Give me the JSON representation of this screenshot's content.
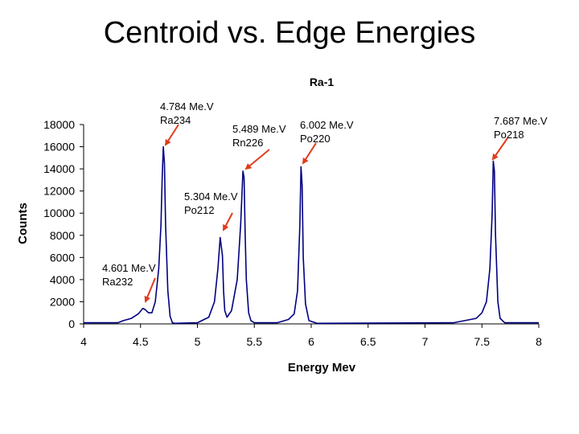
{
  "page": {
    "title": "Centroid vs. Edge Energies"
  },
  "chart_data": {
    "type": "line",
    "title": "Ra-1",
    "xlabel": "Energy Mev",
    "ylabel": "Counts",
    "xlim": [
      4,
      8
    ],
    "ylim": [
      0,
      18000
    ],
    "xticks": [
      "4",
      "4.5",
      "5",
      "5.5",
      "6",
      "6.5",
      "7",
      "7.5",
      "8"
    ],
    "yticks": [
      "0",
      "2000",
      "4000",
      "6000",
      "8000",
      "10000",
      "12000",
      "14000",
      "16000",
      "18000"
    ],
    "grid": false,
    "legend": "none",
    "line_color": "#000080",
    "annotation_color": "#e03c1c",
    "series": [
      {
        "x": [
          4.0,
          4.3,
          4.35,
          4.42,
          4.48,
          4.52,
          4.54,
          4.57,
          4.6,
          4.63,
          4.66,
          4.68,
          4.69,
          4.7,
          4.71,
          4.72,
          4.74,
          4.76,
          4.78,
          4.8,
          5.0,
          5.1,
          5.15,
          5.18,
          5.2,
          5.22,
          5.23,
          5.24,
          5.26,
          5.3,
          5.35,
          5.38,
          5.4,
          5.41,
          5.42,
          5.43,
          5.45,
          5.47,
          5.5,
          5.7,
          5.8,
          5.85,
          5.88,
          5.9,
          5.91,
          5.92,
          5.93,
          5.95,
          5.98,
          6.05,
          7.25,
          7.45,
          7.5,
          7.54,
          7.57,
          7.59,
          7.6,
          7.61,
          7.62,
          7.64,
          7.66,
          7.7,
          8.0
        ],
        "y": [
          100,
          100,
          300,
          500,
          900,
          1400,
          1300,
          1000,
          1000,
          2000,
          5000,
          9000,
          13000,
          16000,
          14500,
          9000,
          3000,
          700,
          100,
          50,
          100,
          600,
          2000,
          5000,
          7800,
          6200,
          3000,
          1200,
          600,
          1200,
          4000,
          9000,
          13800,
          13200,
          8000,
          4000,
          1000,
          300,
          100,
          100,
          400,
          900,
          3000,
          9000,
          14200,
          12500,
          6000,
          1800,
          300,
          50,
          100,
          500,
          1000,
          2000,
          5000,
          10000,
          14700,
          13800,
          8000,
          2000,
          500,
          100,
          100
        ]
      }
    ],
    "annotations": [
      {
        "lines": [
          "4.601 Me.V",
          "Ra232"
        ],
        "x": 4.55,
        "y": 1200
      },
      {
        "lines": [
          "4.784 Me.V",
          "Ra234"
        ],
        "x": 4.71,
        "y": 16000
      },
      {
        "lines": [
          "5.304 Me.V",
          "Po212"
        ],
        "x": 5.24,
        "y": 8000
      },
      {
        "lines": [
          "5.489 Me.V",
          "Rn226"
        ],
        "x": 5.42,
        "y": 14200
      },
      {
        "lines": [
          "6.002 Me.V",
          "Po220"
        ],
        "x": 5.93,
        "y": 14300
      },
      {
        "lines": [
          "7.687 Me.V",
          "Po218"
        ],
        "x": 7.6,
        "y": 14800
      }
    ]
  }
}
